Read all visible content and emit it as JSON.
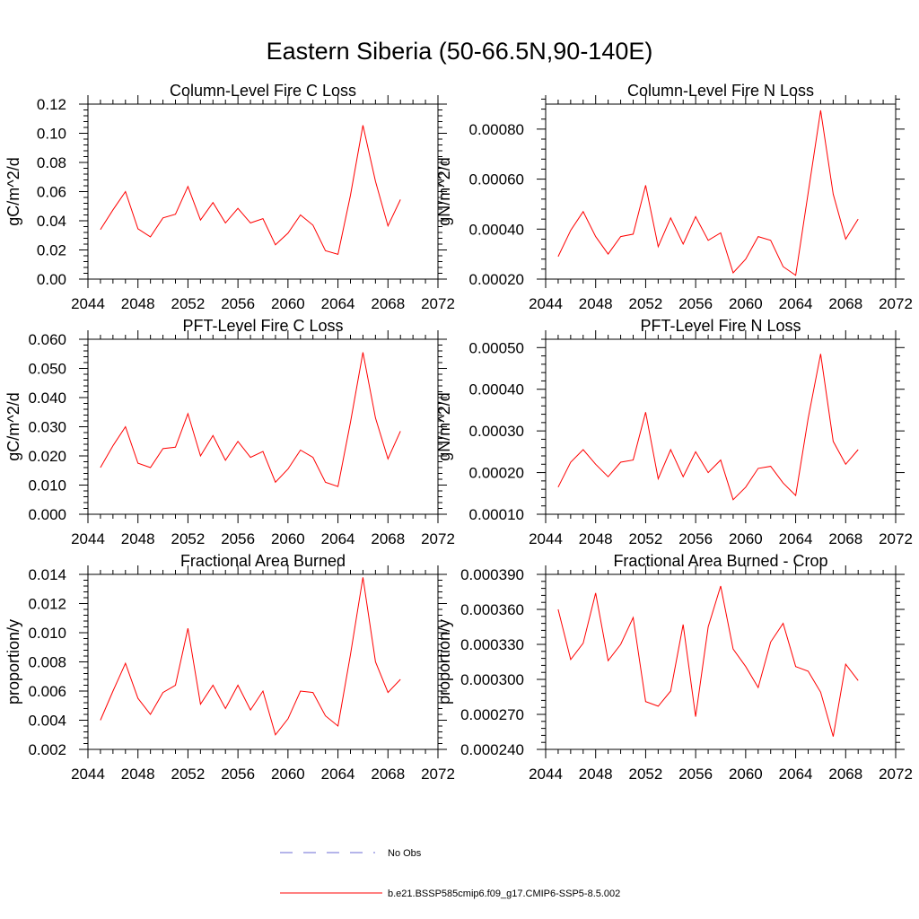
{
  "figure": {
    "title": "Eastern Siberia (50-66.5N,90-140E)"
  },
  "legend": {
    "obs_label": "No Obs",
    "obs_color": "#6b6bd6",
    "model_label": "b.e21.BSSP585cmip6.f09_g17.CMIP6-SSP5-8.5.002",
    "model_color": "#ff0000"
  },
  "chart_data": [
    {
      "type": "line",
      "title": "Column-Level Fire C Loss",
      "ylabel": "gC/m^2/d",
      "xlim": [
        2044,
        2072
      ],
      "ylim": [
        0,
        0.12
      ],
      "xticks": [
        "2044",
        "2048",
        "2052",
        "2056",
        "2060",
        "2064",
        "2068",
        "2072"
      ],
      "yticks": [
        "0.00",
        "0.02",
        "0.04",
        "0.06",
        "0.08",
        "0.10",
        "0.12"
      ],
      "x": [
        2045,
        2046,
        2047,
        2048,
        2049,
        2050,
        2051,
        2052,
        2053,
        2054,
        2055,
        2056,
        2057,
        2058,
        2059,
        2060,
        2061,
        2062,
        2063,
        2064,
        2065,
        2066,
        2067,
        2068,
        2069
      ],
      "series": [
        {
          "name": "b.e21.BSSP585cmip6.f09_g17.CMIP6-SSP5-8.5.002",
          "values": [
            0.034,
            0.0475,
            0.06,
            0.0345,
            0.029,
            0.042,
            0.0445,
            0.0635,
            0.0405,
            0.0525,
            0.0385,
            0.0485,
            0.0385,
            0.0415,
            0.0235,
            0.0315,
            0.044,
            0.037,
            0.0195,
            0.017,
            0.0575,
            0.1055,
            0.067,
            0.0365,
            0.0545
          ]
        }
      ]
    },
    {
      "type": "line",
      "title": "Column-Level Fire N Loss",
      "ylabel": "gN/m^2/d",
      "xlim": [
        2044,
        2072
      ],
      "ylim": [
        0.0002,
        0.0009
      ],
      "xticks": [
        "2044",
        "2048",
        "2052",
        "2056",
        "2060",
        "2064",
        "2068",
        "2072"
      ],
      "yticks": [
        "0.00020",
        "0.00040",
        "0.00060",
        "0.00080"
      ],
      "x": [
        2045,
        2046,
        2047,
        2048,
        2049,
        2050,
        2051,
        2052,
        2053,
        2054,
        2055,
        2056,
        2057,
        2058,
        2059,
        2060,
        2061,
        2062,
        2063,
        2064,
        2065,
        2066,
        2067,
        2068,
        2069
      ],
      "series": [
        {
          "name": "b.e21.BSSP585cmip6.f09_g17.CMIP6-SSP5-8.5.002",
          "values": [
            0.00029,
            0.000395,
            0.00047,
            0.00037,
            0.0003,
            0.00037,
            0.00038,
            0.000575,
            0.00033,
            0.000445,
            0.00034,
            0.00045,
            0.000355,
            0.000385,
            0.000225,
            0.00028,
            0.00037,
            0.000355,
            0.00025,
            0.000215,
            0.000545,
            0.000875,
            0.00054,
            0.00036,
            0.00044
          ]
        }
      ]
    },
    {
      "type": "line",
      "title": "PFT-Level Fire C Loss",
      "ylabel": "gC/m^2/d",
      "xlim": [
        2044,
        2072
      ],
      "ylim": [
        0,
        0.06
      ],
      "xticks": [
        "2044",
        "2048",
        "2052",
        "2056",
        "2060",
        "2064",
        "2068",
        "2072"
      ],
      "yticks": [
        "0.000",
        "0.010",
        "0.020",
        "0.030",
        "0.040",
        "0.050",
        "0.060"
      ],
      "x": [
        2045,
        2046,
        2047,
        2048,
        2049,
        2050,
        2051,
        2052,
        2053,
        2054,
        2055,
        2056,
        2057,
        2058,
        2059,
        2060,
        2061,
        2062,
        2063,
        2064,
        2065,
        2066,
        2067,
        2068,
        2069
      ],
      "series": [
        {
          "name": "b.e21.BSSP585cmip6.f09_g17.CMIP6-SSP5-8.5.002",
          "values": [
            0.016,
            0.0235,
            0.03,
            0.0175,
            0.016,
            0.0225,
            0.023,
            0.0345,
            0.02,
            0.027,
            0.0185,
            0.025,
            0.0195,
            0.0215,
            0.011,
            0.0155,
            0.022,
            0.0195,
            0.011,
            0.0095,
            0.0315,
            0.0555,
            0.033,
            0.019,
            0.0285
          ]
        }
      ]
    },
    {
      "type": "line",
      "title": "PFT-Level Fire N Loss",
      "ylabel": "gN/m^2/d",
      "xlim": [
        2044,
        2072
      ],
      "ylim": [
        0.0001,
        0.00052
      ],
      "xticks": [
        "2044",
        "2048",
        "2052",
        "2056",
        "2060",
        "2064",
        "2068",
        "2072"
      ],
      "yticks": [
        "0.00010",
        "0.00020",
        "0.00030",
        "0.00040",
        "0.00050"
      ],
      "x": [
        2045,
        2046,
        2047,
        2048,
        2049,
        2050,
        2051,
        2052,
        2053,
        2054,
        2055,
        2056,
        2057,
        2058,
        2059,
        2060,
        2061,
        2062,
        2063,
        2064,
        2065,
        2066,
        2067,
        2068,
        2069
      ],
      "series": [
        {
          "name": "b.e21.BSSP585cmip6.f09_g17.CMIP6-SSP5-8.5.002",
          "values": [
            0.000165,
            0.000225,
            0.000255,
            0.00022,
            0.00019,
            0.000225,
            0.00023,
            0.000345,
            0.000185,
            0.000255,
            0.00019,
            0.00025,
            0.0002,
            0.00023,
            0.000135,
            0.000165,
            0.00021,
            0.000215,
            0.000175,
            0.000145,
            0.00033,
            0.000485,
            0.000275,
            0.00022,
            0.000255
          ]
        }
      ]
    },
    {
      "type": "line",
      "title": "Fractional Area Burned",
      "ylabel": "proportion/y",
      "xlim": [
        2044,
        2072
      ],
      "ylim": [
        0.002,
        0.014
      ],
      "xticks": [
        "2044",
        "2048",
        "2052",
        "2056",
        "2060",
        "2064",
        "2068",
        "2072"
      ],
      "yticks": [
        "0.002",
        "0.004",
        "0.006",
        "0.008",
        "0.010",
        "0.012",
        "0.014"
      ],
      "x": [
        2045,
        2046,
        2047,
        2048,
        2049,
        2050,
        2051,
        2052,
        2053,
        2054,
        2055,
        2056,
        2057,
        2058,
        2059,
        2060,
        2061,
        2062,
        2063,
        2064,
        2065,
        2066,
        2067,
        2068,
        2069
      ],
      "series": [
        {
          "name": "b.e21.BSSP585cmip6.f09_g17.CMIP6-SSP5-8.5.002",
          "values": [
            0.004,
            0.006,
            0.0079,
            0.0055,
            0.0044,
            0.0059,
            0.0064,
            0.0103,
            0.0051,
            0.0064,
            0.0048,
            0.0064,
            0.0047,
            0.006,
            0.003,
            0.0041,
            0.006,
            0.0059,
            0.0043,
            0.0036,
            0.0085,
            0.0138,
            0.008,
            0.0059,
            0.0068
          ]
        }
      ]
    },
    {
      "type": "line",
      "title": "Fractional Area Burned - Crop",
      "ylabel": "proportion/y",
      "xlim": [
        2044,
        2072
      ],
      "ylim": [
        0.00024,
        0.00039
      ],
      "xticks": [
        "2044",
        "2048",
        "2052",
        "2056",
        "2060",
        "2064",
        "2068",
        "2072"
      ],
      "yticks": [
        "0.000240",
        "0.000270",
        "0.000300",
        "0.000330",
        "0.000360",
        "0.000390"
      ],
      "x": [
        2045,
        2046,
        2047,
        2048,
        2049,
        2050,
        2051,
        2052,
        2053,
        2054,
        2055,
        2056,
        2057,
        2058,
        2059,
        2060,
        2061,
        2062,
        2063,
        2064,
        2065,
        2066,
        2067,
        2068,
        2069
      ],
      "series": [
        {
          "name": "b.e21.BSSP585cmip6.f09_g17.CMIP6-SSP5-8.5.002",
          "values": [
            0.00036,
            0.000317,
            0.000331,
            0.000374,
            0.000316,
            0.00033,
            0.000353,
            0.000281,
            0.000277,
            0.00029,
            0.000347,
            0.000268,
            0.000345,
            0.00038,
            0.000326,
            0.000311,
            0.000293,
            0.000332,
            0.000348,
            0.000311,
            0.000307,
            0.000289,
            0.000251,
            0.000313,
            0.000299
          ]
        }
      ]
    }
  ]
}
